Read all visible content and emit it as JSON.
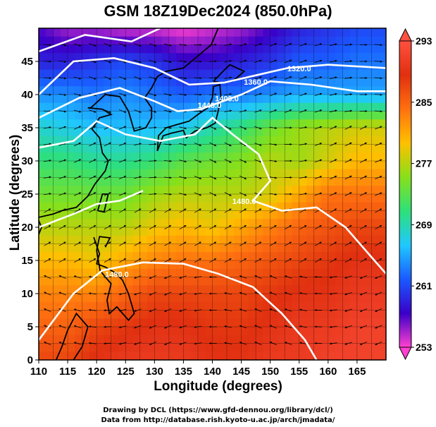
{
  "title": "GSM 18Z19Dec2024 (850.0hPa)",
  "chart_data": {
    "type": "heatmap",
    "title": "GSM 18Z19Dec2024 (850.0hPa)",
    "xlabel": "Longitude (degrees)",
    "ylabel": "Latitude  (degrees)",
    "xlim": [
      110,
      170
    ],
    "ylim": [
      0,
      50
    ],
    "x_ticks": [
      "110",
      "115",
      "120",
      "125",
      "130",
      "135",
      "140",
      "145",
      "150",
      "155",
      "160",
      "165"
    ],
    "y_ticks": [
      "0",
      "5",
      "10",
      "15",
      "20",
      "25",
      "30",
      "35",
      "40",
      "45"
    ],
    "grid": true,
    "colorbar": {
      "ticks": [
        "253",
        "261",
        "269",
        "277",
        "285",
        "293"
      ],
      "min": 253,
      "max": 293,
      "colors": [
        "#ff40d0",
        "#3a00c8",
        "#1a5aff",
        "#20c8ff",
        "#2ee07a",
        "#88e01a",
        "#ffc000",
        "#ff7010",
        "#e03010",
        "#ff5040"
      ]
    },
    "contour_labels": [
      {
        "text": "1320.0",
        "lon": 155.0,
        "lat": 43.5
      },
      {
        "text": "1360.0",
        "lon": 147.5,
        "lat": 41.5
      },
      {
        "text": "1400.0",
        "lon": 142.5,
        "lat": 39.0
      },
      {
        "text": "1440.0",
        "lon": 139.5,
        "lat": 38.0
      },
      {
        "text": "1480.0",
        "lon": 145.5,
        "lat": 23.5
      },
      {
        "text": "1480.0",
        "lon": 123.5,
        "lat": 12.5
      }
    ],
    "temperature_field": [
      [
        257,
        255,
        255,
        254,
        254,
        253,
        254,
        255,
        257,
        259,
        260,
        261
      ],
      [
        259,
        259,
        260,
        261,
        260,
        258,
        258,
        259,
        260,
        262,
        262,
        263
      ],
      [
        264,
        264,
        263,
        264,
        263,
        262,
        263,
        263,
        264,
        265,
        265,
        265
      ],
      [
        268,
        267,
        266,
        266,
        266,
        267,
        269,
        271,
        274,
        276,
        277,
        278
      ],
      [
        271,
        271,
        270,
        270,
        271,
        273,
        274,
        275,
        277,
        276,
        278,
        280
      ],
      [
        274,
        274,
        274,
        274,
        276,
        277,
        277,
        277,
        278,
        281,
        284,
        284
      ],
      [
        277,
        277,
        277,
        277,
        279,
        280,
        279,
        281,
        283,
        285,
        286,
        287
      ],
      [
        280,
        280,
        279,
        281,
        283,
        284,
        284,
        285,
        286,
        287,
        288,
        289
      ],
      [
        283,
        283,
        283,
        285,
        287,
        287,
        287,
        287,
        288,
        289,
        289,
        290
      ],
      [
        285,
        285,
        287,
        288,
        289,
        289,
        288,
        288,
        289,
        290,
        290,
        291
      ],
      [
        287,
        287,
        289,
        290,
        290,
        290,
        289,
        289,
        290,
        290,
        291,
        291
      ]
    ]
  },
  "credits": {
    "line1": "Drawing by DCL (https://www.gfd-dennou.org/library/dcl/)",
    "line2": "Data from http://database.rish.kyoto-u.ac.jp/arch/jmadata/"
  }
}
